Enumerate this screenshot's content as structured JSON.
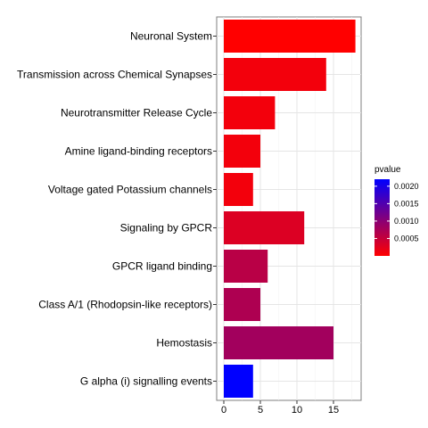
{
  "chart_data": {
    "type": "bar",
    "orientation": "horizontal",
    "title": "",
    "xlabel": "",
    "ylabel": "",
    "categories": [
      "Neuronal System",
      "Transmission across Chemical Synapses",
      "Neurotransmitter Release Cycle",
      "Amine ligand-binding receptors",
      "Voltage gated Potassium channels",
      "Signaling by GPCR",
      "GPCR ligand binding",
      "Class A/1 (Rhodopsin-like receptors)",
      "Hemostasis",
      "G alpha (i) signalling events"
    ],
    "values": [
      18,
      14,
      7,
      5,
      4,
      11,
      6,
      5,
      15,
      4
    ],
    "pvalues": [
      0.0,
      0.0001,
      0.0001,
      0.0001,
      0.0001,
      0.0003,
      0.0006,
      0.0007,
      0.0008,
      0.0022
    ],
    "xlim": [
      0,
      18.6
    ],
    "xticks": [
      0,
      5,
      10,
      15
    ],
    "grid": true,
    "legend": {
      "title": "pvalue",
      "placement": "right",
      "ticks": [
        "0.0020",
        "0.0015",
        "0.0010",
        "0.0005"
      ],
      "tick_values": [
        0.002,
        0.0015,
        0.001,
        0.0005
      ],
      "range": [
        0.0,
        0.0022
      ],
      "color_low": "#ff0000",
      "color_high": "#0000ff"
    }
  }
}
